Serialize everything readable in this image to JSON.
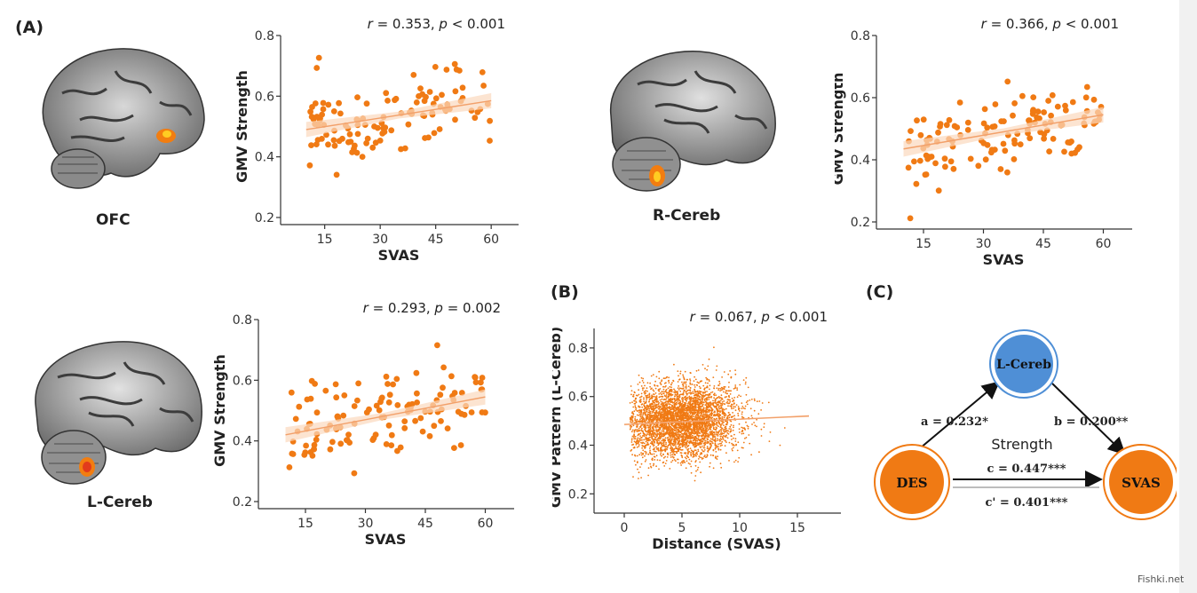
{
  "panels": {
    "A": "(A)",
    "B": "(B)",
    "C": "(C)"
  },
  "regions": {
    "ofc": "OFC",
    "rcereb": "R-Cereb",
    "lcereb": "L-Cereb"
  },
  "colors": {
    "points": "#f07a14",
    "fit_band": "#fbd9bd",
    "node_blue": "#4f8fd6",
    "node_orange": "#f07a14"
  },
  "chart_data": [
    {
      "id": "ofc",
      "type": "scatter",
      "stat": {
        "r_label": "r",
        "r_text": " = 0.353, ",
        "p_label": "p",
        "p_text": " < 0.001"
      },
      "xlabel": "SVAS",
      "ylabel": "GMV Strength",
      "xlim": [
        5,
        65
      ],
      "ylim": [
        0.2,
        0.8
      ],
      "xticks": [
        15,
        30,
        45,
        60
      ],
      "yticks": [
        0.2,
        0.4,
        0.6,
        0.8
      ],
      "ytick_labels": [
        "0.2",
        "0.4",
        "0.6",
        "0.8"
      ],
      "fit": {
        "x": [
          10,
          60
        ],
        "y": [
          0.49,
          0.585
        ]
      },
      "seed": 11,
      "n": 120,
      "slope": 0.0019,
      "intercept": 0.47,
      "noise": 0.065
    },
    {
      "id": "rcereb",
      "type": "scatter",
      "stat": {
        "r_label": "r",
        "r_text": " = 0.366, ",
        "p_label": "p",
        "p_text": " < 0.001"
      },
      "xlabel": "SVAS",
      "ylabel": "GMV Strength",
      "xlim": [
        5,
        65
      ],
      "ylim": [
        0.2,
        0.8
      ],
      "xticks": [
        15,
        30,
        45,
        60
      ],
      "yticks": [
        0.2,
        0.4,
        0.6,
        0.8
      ],
      "ytick_labels": [
        "0.2",
        "0.4",
        "0.6",
        "0.8"
      ],
      "fit": {
        "x": [
          10,
          60
        ],
        "y": [
          0.435,
          0.545
        ]
      },
      "seed": 27,
      "n": 130,
      "slope": 0.0022,
      "intercept": 0.41,
      "noise": 0.06
    },
    {
      "id": "lcereb",
      "type": "scatter",
      "stat": {
        "r_label": "r",
        "r_text": " = 0.293, ",
        "p_label": "p",
        "p_text": " = 0.002"
      },
      "xlabel": "SVAS",
      "ylabel": "GMV Strength",
      "xlim": [
        5,
        65
      ],
      "ylim": [
        0.2,
        0.8
      ],
      "xticks": [
        15,
        30,
        45,
        60
      ],
      "yticks": [
        0.2,
        0.4,
        0.6,
        0.8
      ],
      "ytick_labels": [
        "0.2",
        "0.4",
        "0.6",
        "0.8"
      ],
      "fit": {
        "x": [
          10,
          60
        ],
        "y": [
          0.42,
          0.545
        ]
      },
      "seed": 43,
      "n": 125,
      "slope": 0.0025,
      "intercept": 0.395,
      "noise": 0.075
    },
    {
      "id": "pattern",
      "type": "scatter",
      "stat": {
        "r_label": "r",
        "r_text": " = 0.067, ",
        "p_label": "p",
        "p_text": " < 0.001"
      },
      "xlabel": "Distance (SVAS)",
      "ylabel": "GMV Pattern (L-Cereb)",
      "xlim": [
        -2,
        18
      ],
      "ylim": [
        0.15,
        0.88
      ],
      "xticks": [
        0,
        5,
        10,
        15
      ],
      "yticks": [
        0.2,
        0.4,
        0.6,
        0.8
      ],
      "ytick_labels": [
        "0.2",
        "0.4",
        "0.6",
        "0.8"
      ],
      "fit": {
        "x": [
          0,
          16
        ],
        "y": [
          0.485,
          0.52
        ]
      },
      "seed": 77,
      "n": 4200
    }
  ],
  "mediation": {
    "nodes": {
      "mediator": "L-Cereb",
      "x": "DES",
      "y": "SVAS"
    },
    "paths": {
      "a": "a = 0.232*",
      "b": "b = 0.200**",
      "c": "c = 0.447***",
      "c_prime": "c' = 0.401***"
    },
    "label": "Strength"
  },
  "watermark": "Fishki.net"
}
